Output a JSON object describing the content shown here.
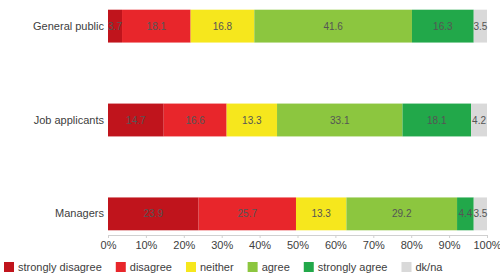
{
  "chart_data": {
    "type": "bar",
    "orientation": "horizontal",
    "stacked": true,
    "data_labels": true,
    "grid": false,
    "legend": "bottom",
    "categories": [
      "General public",
      "Job applicants",
      "Managers"
    ],
    "series": [
      {
        "name": "strongly disagree",
        "color": "#c0141c",
        "values": [
          3.7,
          14.7,
          23.9
        ]
      },
      {
        "name": "disagree",
        "color": "#e8262b",
        "values": [
          18.1,
          16.6,
          25.7
        ]
      },
      {
        "name": "neither",
        "color": "#f6e71d",
        "values": [
          16.8,
          13.3,
          13.3
        ]
      },
      {
        "name": "agree",
        "color": "#8cc63f",
        "values": [
          41.6,
          33.1,
          29.2
        ]
      },
      {
        "name": "strongly agree",
        "color": "#22a84a",
        "values": [
          16.3,
          18.1,
          4.4
        ]
      },
      {
        "name": "dk/na",
        "color": "#d9d9d9",
        "values": [
          3.5,
          4.2,
          3.5
        ]
      }
    ],
    "xlim": [
      0,
      100
    ],
    "xticks": [
      {
        "value": 0,
        "label": "0%"
      },
      {
        "value": 10,
        "label": "10%"
      },
      {
        "value": 20,
        "label": "20%"
      },
      {
        "value": 30,
        "label": "30%"
      },
      {
        "value": 40,
        "label": "40%"
      },
      {
        "value": 50,
        "label": "50%"
      },
      {
        "value": 60,
        "label": "60%"
      },
      {
        "value": 70,
        "label": "70%"
      },
      {
        "value": 80,
        "label": "80%"
      },
      {
        "value": 90,
        "label": "90%"
      },
      {
        "value": 100,
        "label": "100%"
      }
    ]
  }
}
